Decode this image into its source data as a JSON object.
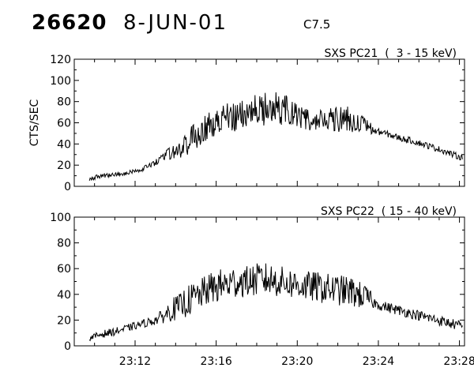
{
  "header": {
    "event_id": "26620",
    "date": "8-JUN-01",
    "flare_class": "C7.5"
  },
  "chart_data": [
    {
      "type": "line",
      "title": "SXS PC21  (  3 - 15 keV)",
      "ylabel": "CTS/SEC",
      "xlabel": "",
      "xlim": [
        "23:09:00",
        "23:28:15"
      ],
      "ylim": [
        0,
        120
      ],
      "y_ticks": [
        "0",
        "20",
        "40",
        "60",
        "80",
        "100",
        "120"
      ],
      "x_tick_labels": [],
      "x": [
        "23:09:45",
        "23:10:20",
        "23:11:00",
        "23:11:40",
        "23:12:20",
        "23:13:00",
        "23:13:30",
        "23:13:45",
        "23:14:10",
        "23:14:30",
        "23:14:50",
        "23:15:15",
        "23:15:30",
        "23:15:50",
        "23:16:15",
        "23:16:40",
        "23:17:00",
        "23:17:30",
        "23:17:55",
        "23:18:20",
        "23:18:45",
        "23:19:10",
        "23:19:30",
        "23:19:50",
        "23:20:10",
        "23:20:30",
        "23:20:50",
        "23:21:10",
        "23:21:40",
        "23:22:10",
        "23:22:40",
        "23:23:00",
        "23:23:30",
        "23:23:50",
        "23:24:10",
        "23:24:40",
        "23:25:10",
        "23:25:40",
        "23:26:10",
        "23:26:40",
        "23:27:10",
        "23:27:40",
        "23:28:10"
      ],
      "series": [
        {
          "values": [
            7,
            10,
            11,
            13,
            16,
            22,
            29,
            31,
            33,
            40,
            46,
            52,
            55,
            60,
            62,
            64,
            67,
            70,
            72,
            73,
            75,
            73,
            72,
            69,
            66,
            63,
            61,
            62,
            63,
            64,
            63,
            60,
            56,
            52,
            51,
            48,
            45,
            43,
            40,
            37,
            34,
            30,
            27
          ],
          "noise": [
            2,
            2,
            2,
            2,
            2,
            3,
            4,
            8,
            10,
            12,
            12,
            14,
            14,
            14,
            15,
            15,
            15,
            14,
            15,
            16,
            16,
            15,
            14,
            12,
            12,
            10,
            10,
            12,
            12,
            13,
            12,
            10,
            8,
            3,
            3,
            3,
            3,
            3,
            3,
            3,
            3,
            3,
            3
          ]
        }
      ]
    },
    {
      "type": "line",
      "title": "SXS PC22  ( 15 - 40 keV)",
      "ylabel": "",
      "xlabel": "",
      "xlim": [
        "23:09:00",
        "23:28:15"
      ],
      "ylim": [
        0,
        100
      ],
      "y_ticks": [
        "0",
        "20",
        "40",
        "60",
        "80",
        "100"
      ],
      "x_tick_labels": [
        "23:12",
        "23:16",
        "23:20",
        "23:24",
        "23:28"
      ],
      "x": [
        "23:09:45",
        "23:10:20",
        "23:11:00",
        "23:11:40",
        "23:12:20",
        "23:13:00",
        "23:13:30",
        "23:13:45",
        "23:14:10",
        "23:14:30",
        "23:14:50",
        "23:15:15",
        "23:15:30",
        "23:15:50",
        "23:16:15",
        "23:16:40",
        "23:17:00",
        "23:17:30",
        "23:17:55",
        "23:18:20",
        "23:18:45",
        "23:19:10",
        "23:19:30",
        "23:19:50",
        "23:20:10",
        "23:20:30",
        "23:20:50",
        "23:21:10",
        "23:21:40",
        "23:22:10",
        "23:22:40",
        "23:23:00",
        "23:23:30",
        "23:23:50",
        "23:24:10",
        "23:24:40",
        "23:25:10",
        "23:25:40",
        "23:26:10",
        "23:26:40",
        "23:27:10",
        "23:27:40",
        "23:28:10"
      ],
      "series": [
        {
          "values": [
            6,
            9,
            11,
            14,
            17,
            20,
            24,
            28,
            30,
            34,
            37,
            40,
            43,
            45,
            47,
            48,
            50,
            50,
            51,
            52,
            51,
            50,
            49,
            48,
            47,
            46,
            46,
            45,
            44,
            43,
            42,
            40,
            37,
            33,
            31,
            29,
            27,
            25,
            23,
            21,
            19,
            17,
            15
          ],
          "noise": [
            2,
            3,
            3,
            3,
            3,
            4,
            6,
            9,
            10,
            12,
            12,
            12,
            12,
            13,
            13,
            13,
            13,
            12,
            13,
            13,
            13,
            12,
            12,
            12,
            12,
            12,
            12,
            12,
            12,
            12,
            12,
            11,
            9,
            4,
            4,
            4,
            4,
            4,
            4,
            4,
            4,
            4,
            4
          ]
        }
      ]
    }
  ]
}
